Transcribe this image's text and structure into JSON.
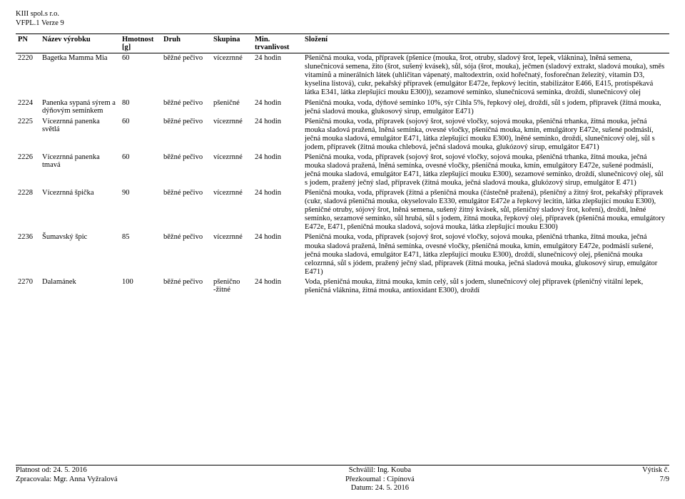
{
  "header": {
    "company": "KIII spol.s r.o.",
    "doc_version": "VFPL.1 Verze 9"
  },
  "table": {
    "cols": {
      "pn": "PN",
      "name": "Název výrobku",
      "weight": "Hmotnost [g]",
      "kind": "Druh",
      "group": "Skupina",
      "shelf": "Min. trvanlivost",
      "composition": "Složení"
    },
    "rows": [
      {
        "pn": "2220",
        "name": "Bagetka Mamma Mia",
        "weight": "60",
        "kind": "běžné pečivo",
        "group": "vícezrnné",
        "shelf": "24 hodin",
        "comp": "Pšeničná mouka, voda, přípravek (pšenice (mouka, šrot, otruby, sladový šrot, lepek, vláknina), lněná semena, slunečnicová semena, žito (šrot, sušený kvásek), sůl, sója (šrot, mouka), ječmen (sladový extrakt, sladová mouka), směs vitamínů a minerálních látek (uhličitan vápenatý, maltodextrin, oxid hořečnatý, fosforečnan železitý, vitamin D3, kyselina listová), cukr, pekařský přípravek (emulgátor E472e, řepkový lecitin, stabilizátor E466, E415, protispékavá látka E341, látka zlepšující mouku E300)), sezamové semínko, slunečnicová semínka, droždí, slunečnicový olej"
      },
      {
        "pn": "2224",
        "name": "Panenka sypaná sýrem a dýňovým semínkem",
        "weight": "80",
        "kind": "běžné pečivo",
        "group": "pšeničné",
        "shelf": "24 hodin",
        "comp": "Pšeničná mouka, voda, dýňové semínko 10%, sýr Cihla 5%, řepkový olej, droždí, sůl s jodem, přípravek (žitná mouka, ječná sladová mouka, glukosový sirup, emulgátor E471)"
      },
      {
        "pn": "2225",
        "name": "Vícezrnná panenka světlá",
        "weight": "60",
        "kind": "běžné pečivo",
        "group": "vícezrnné",
        "shelf": "24 hodin",
        "comp": "Pšeničná mouka, voda, přípravek (sojový šrot, sojové vločky, sojová mouka, pšeničná trhanka, žitná mouka, ječná mouka sladová pražená, lněná semínka, ovesné vločky, pšeničná mouka, kmín, emulgátory E472e, sušené podmáslí, ječná mouka sladová, emulgátor E471, látka zlepšující mouku E300), lněné semínko, droždí, slunečnicový olej, sůl s jodem, přípravek (žitná mouka chlebová, ječná sladová mouka, glukózový sirup, emulgátor E471)"
      },
      {
        "pn": "2226",
        "name": "Vícezrnná panenka tmavá",
        "weight": "60",
        "kind": "běžné pečivo",
        "group": "vícezrnné",
        "shelf": "24 hodin",
        "comp": "Pšeničná mouka, voda, přípravek (sojový šrot, sojové vločky, sojová mouka, pšeničná trhanka, žitná mouka, ječná mouka sladová pražená, lněná semínka, ovesné vločky, pšeničná mouka, kmín, emulgátory E472e, sušené podmáslí, ječná mouka sladová, emulgátor E471, látka zlepšující mouku E300), sezamové semínko, droždí, slunečnicový olej, sůl s jodem, pražený ječný slad, přípravek (žitná mouka, ječná sladová mouka, glukózový sirup, emulgátor E 471)"
      },
      {
        "pn": "2228",
        "name": "Vícezrnná špička",
        "weight": "90",
        "kind": "běžné pečivo",
        "group": "vícezrnné",
        "shelf": "24 hodin",
        "comp": "Pšeničná mouka, voda, přípravek (žitná a pšeničná mouka (částečně pražená), pšeničný a žitný šrot, pekařský přípravek (cukr, sladová pšeničná mouka, okyselovalo E330, emulgátor E472e a řepkový lecitin, látka zlepšující mouku E300), pšeničné otruby, sójový šrot, lněná semena, sušený žitný kvásek, sůl, pšeničný sladový šrot, koření), droždí, lněné semínko, sezamové semínko, sůl hrubá, sůl s jodem, žitná mouka, řepkový olej, přípravek (pšeničná mouka, emulgátory E472e, E471, pšeničná mouka sladová, sojová mouka, látka zlepšující mouku E300)"
      },
      {
        "pn": "2236",
        "name": "Šumavský špic",
        "weight": "85",
        "kind": "běžné pečivo",
        "group": "vícezrnné",
        "shelf": "24 hodin",
        "comp": "Pšeničná mouka, voda, přípravek (sojový šrot, sojové vločky, sojová mouka, pšeničná trhanka, žitná mouka, ječná mouka sladová pražená, lněná semínka, ovesné vločky, pšeničná mouka, kmín, emulgátory E472e, podmáslí sušené, ječná mouka sladová, emulgátor E471, látka zlepšující mouku E300), droždí, slunečnicový olej, pšeničná mouka celozrnná, sůl s jódem, pražený ječný slad, přípravek (žitná mouka, ječná sladová mouka, glukosový sirup, emulgátor E471)"
      },
      {
        "pn": "2270",
        "name": "Dalamánek",
        "weight": "100",
        "kind": "běžné pečivo",
        "group": "pšenično -žitné",
        "shelf": "24 hodin",
        "comp": "Voda, pšeničná mouka, žitná mouka, kmín celý, sůl s jodem, slunečnicový olej přípravek (pšeničný vitální lepek, pšeničná vláknina, žitná mouka, antioxidant E300), droždí"
      }
    ]
  },
  "footer": {
    "left1": "Platnost od: 24. 5. 2016",
    "left2": "Zpracovala: Mgr. Anna Vyžralová",
    "center1": "Schválil: Ing. Kouba",
    "center2": "Přezkoumal : Cipínová",
    "center3": "Datum: 24. 5. 2016",
    "right1": "Výtisk č.",
    "right2": "7/9"
  }
}
